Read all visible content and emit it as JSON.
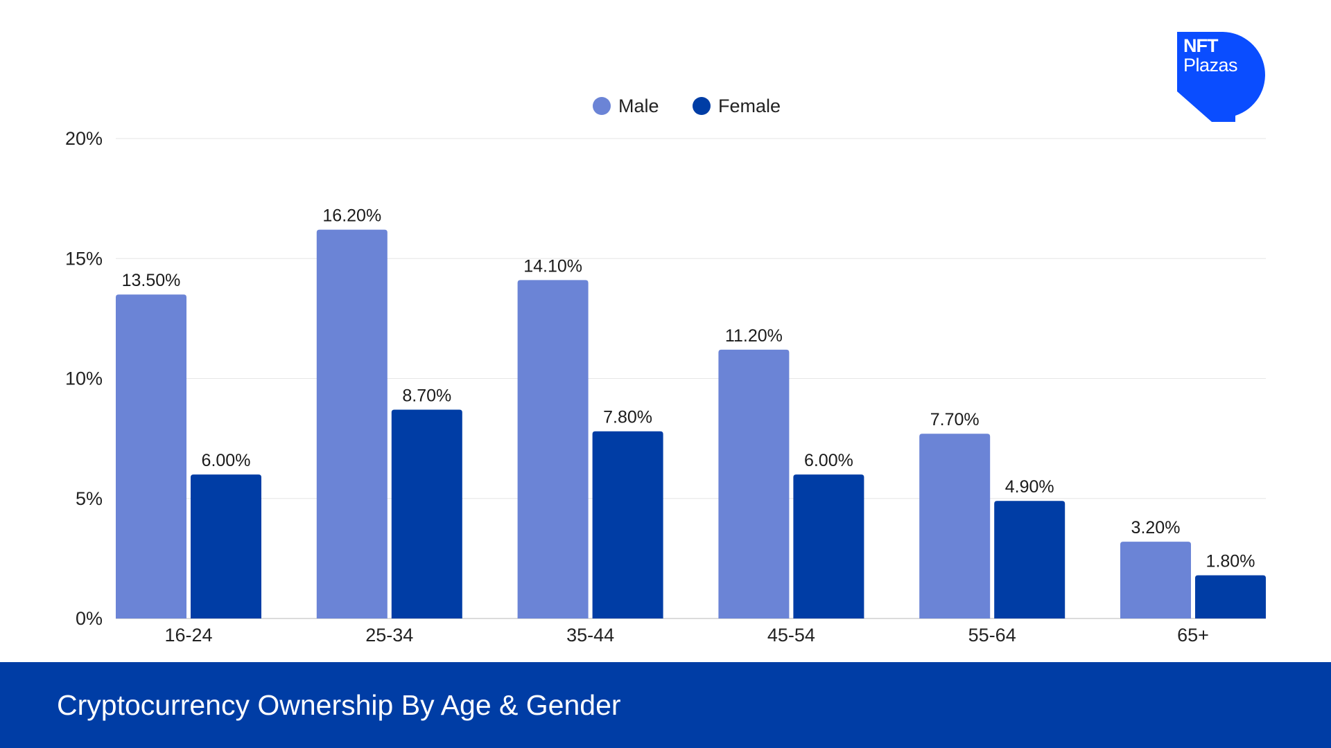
{
  "footer": {
    "title": "Cryptocurrency Ownership By Age & Gender"
  },
  "logo": {
    "line1": "NFT",
    "line2": "Plazas",
    "color": "#0a4dff"
  },
  "colors": {
    "male": "#6b84d6",
    "female": "#003da5",
    "footer": "#003da5"
  },
  "chart_data": {
    "type": "bar",
    "categories": [
      "16-24",
      "25-34",
      "35-44",
      "45-54",
      "55-64",
      "65+"
    ],
    "series": [
      {
        "name": "Male",
        "values": [
          13.5,
          16.2,
          14.1,
          11.2,
          7.7,
          3.2
        ],
        "labels": [
          "13.50%",
          "16.20%",
          "14.10%",
          "11.20%",
          "7.70%",
          "3.20%"
        ]
      },
      {
        "name": "Female",
        "values": [
          6.0,
          8.7,
          7.8,
          6.0,
          4.9,
          1.8
        ],
        "labels": [
          "6.00%",
          "8.70%",
          "7.80%",
          "6.00%",
          "4.90%",
          "1.80%"
        ]
      }
    ],
    "yticks": [
      0,
      5,
      10,
      15,
      20
    ],
    "ytick_labels": [
      "0%",
      "5%",
      "10%",
      "15%",
      "20%"
    ],
    "ylim": [
      0,
      20
    ],
    "grid": true,
    "legend": "top-center"
  }
}
